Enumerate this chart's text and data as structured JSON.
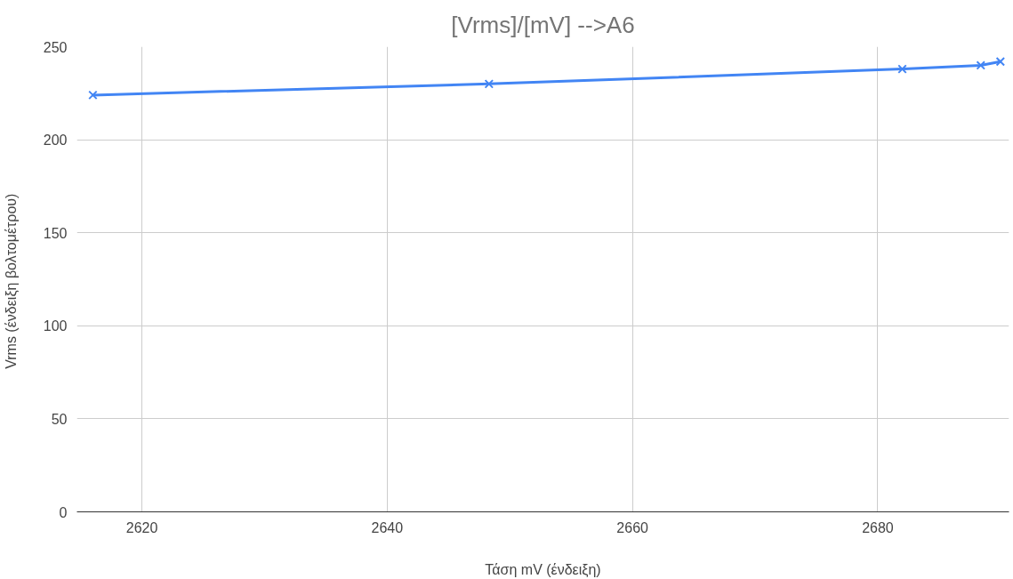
{
  "chart_data": {
    "type": "line",
    "title": "[Vrms]/[mV] -->A6",
    "xlabel": "Τάση mV (ένδειξη)",
    "ylabel": "Vrms (ένδειξη  βολτομέτρου)",
    "x": [
      2616,
      2648.3,
      2682,
      2688.4,
      2690
    ],
    "series": [
      {
        "color": "#4285f4",
        "values": [
          224,
          230,
          238,
          240,
          242
        ]
      }
    ],
    "xlim": [
      2614.7,
      2690.7
    ],
    "xticks": [
      2620,
      2640,
      2660,
      2680
    ],
    "ylim": [
      0,
      250
    ],
    "yticks": [
      0,
      50,
      100,
      150,
      200,
      250
    ],
    "grid": true,
    "marker": "cross",
    "line_style": "solid"
  }
}
